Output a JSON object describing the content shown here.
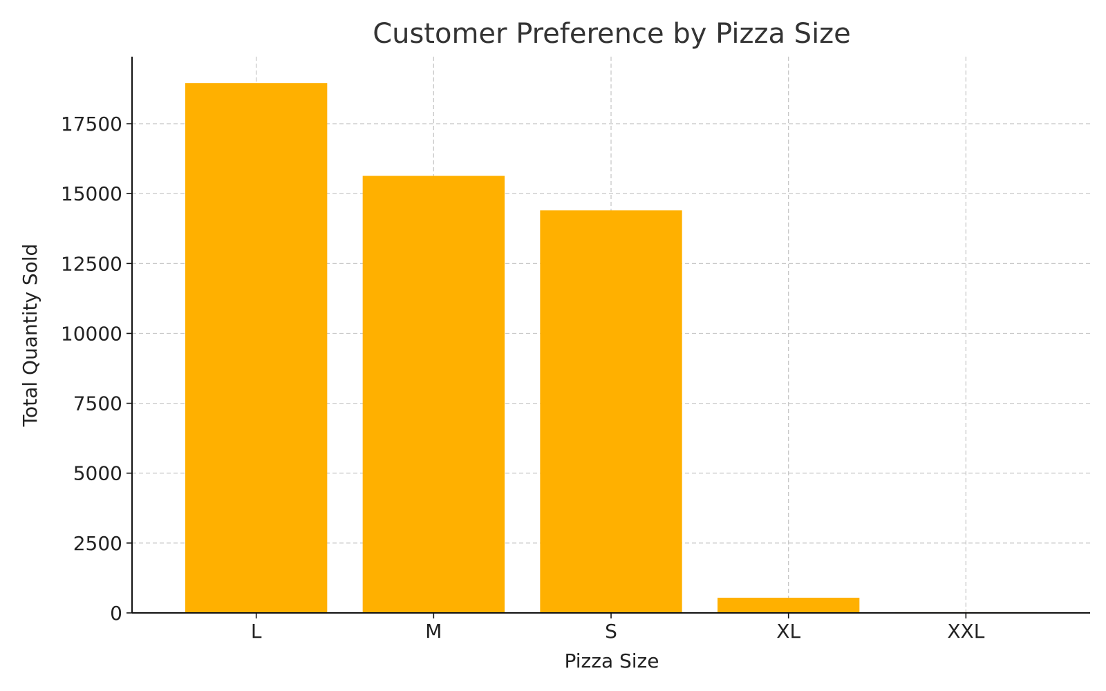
{
  "chart_data": {
    "type": "bar",
    "title": "Customer Preference by Pizza Size",
    "xlabel": "Pizza Size",
    "ylabel": "Total Quantity Sold",
    "categories": [
      "L",
      "M",
      "S",
      "XL",
      "XXL"
    ],
    "values": [
      18956,
      15635,
      14403,
      544,
      28
    ],
    "ylim": [
      0,
      19900
    ],
    "yticks": [
      0,
      2500,
      5000,
      7500,
      10000,
      12500,
      15000,
      17500
    ],
    "grid": true,
    "bar_color": "#FFB000"
  }
}
